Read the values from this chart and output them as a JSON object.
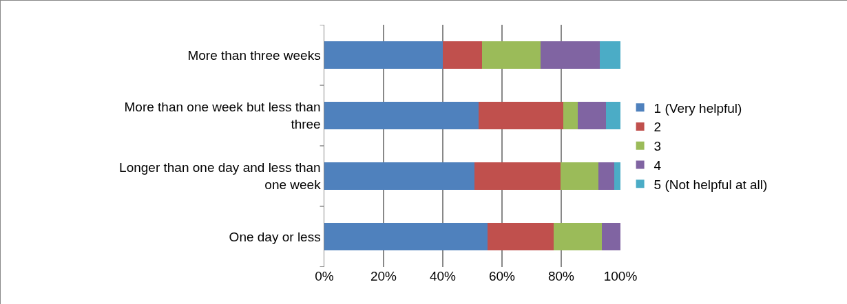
{
  "chart_data": {
    "type": "bar",
    "orientation": "horizontal",
    "stacked": true,
    "categories": [
      "More than three weeks",
      "More than one week but less than three",
      "Longer than one day and less than one week",
      "One day or less"
    ],
    "series": [
      {
        "name": "1 (Very helpful)",
        "color": "#4f81bd",
        "values": [
          40,
          52.2,
          50.8,
          55
        ]
      },
      {
        "name": "2",
        "color": "#c0504d",
        "values": [
          13.3,
          28.5,
          29,
          22.4
        ]
      },
      {
        "name": "3",
        "color": "#9bbb59",
        "values": [
          19.7,
          4.9,
          12.8,
          16.4
        ]
      },
      {
        "name": "4",
        "color": "#8064a2",
        "values": [
          20,
          9.5,
          5.4,
          6.2
        ]
      },
      {
        "name": "5 (Not helpful at all)",
        "color": "#4bacc6",
        "values": [
          7,
          4.9,
          2,
          0
        ]
      }
    ],
    "xlim": [
      0,
      100
    ],
    "xticks": [
      {
        "value": 0,
        "label": "0%"
      },
      {
        "value": 20,
        "label": "20%"
      },
      {
        "value": 40,
        "label": "40%"
      },
      {
        "value": 60,
        "label": "60%"
      },
      {
        "value": 80,
        "label": "80%"
      },
      {
        "value": 100,
        "label": "100%"
      }
    ],
    "grid": "x",
    "legend": "right"
  }
}
